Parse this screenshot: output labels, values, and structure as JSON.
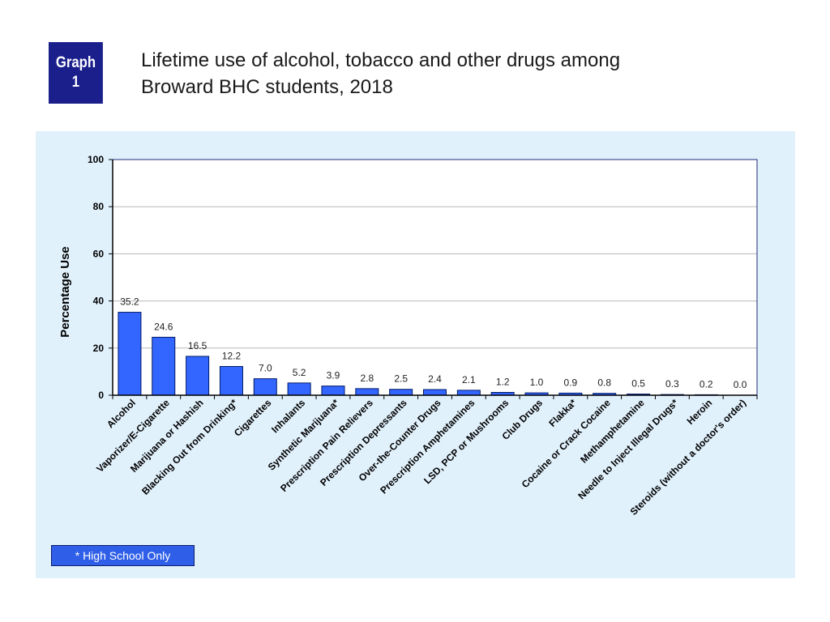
{
  "badge": {
    "line1": "Graph",
    "line2": "1"
  },
  "title": {
    "line1": "Lifetime use of alcohol, tobacco and other drugs among",
    "line2": "Broward BHC students, 2018"
  },
  "footnote": "* High School Only",
  "colors": {
    "bar": "#3366ff",
    "bar_border": "#001a66",
    "badge": "#1a1f8c",
    "panel": "#e1f1fc"
  },
  "chart_data": {
    "type": "bar",
    "ylabel": "Percentage Use",
    "ylim": [
      0,
      100
    ],
    "yticks": [
      0,
      20,
      40,
      60,
      80,
      100
    ],
    "grid": true,
    "categories": [
      "Alcohol",
      "Vaporizer/E-Cigarette",
      "Marijuana or Hashish",
      "Blacking Out from Drinking*",
      "Cigarettes",
      "Inhalants",
      "Synthetic Marijuana*",
      "Prescription Pain Relievers",
      "Prescription Depressants",
      "Over-the-Counter Drugs",
      "Prescription Amphetamines",
      "LSD, PCP or Mushrooms",
      "Club Drugs",
      "Flakka*",
      "Cocaine or Crack Cocaine",
      "Methamphetamine",
      "Needle to Inject Illegal Drugs*",
      "Heroin",
      "Steroids (without a doctor's order)"
    ],
    "values": [
      35.2,
      24.6,
      16.5,
      12.2,
      7.0,
      5.2,
      3.9,
      2.8,
      2.5,
      2.4,
      2.1,
      1.2,
      1.0,
      0.9,
      0.8,
      0.5,
      0.3,
      0.2,
      0.0
    ],
    "value_labels": [
      "35.2",
      "24.6",
      "16.5",
      "12.2",
      "7.0",
      "5.2",
      "3.9",
      "2.8",
      "2.5",
      "2.4",
      "2.1",
      "1.2",
      "1.0",
      "0.9",
      "0.8",
      "0.5",
      "0.3",
      "0.2",
      "0.0"
    ]
  }
}
